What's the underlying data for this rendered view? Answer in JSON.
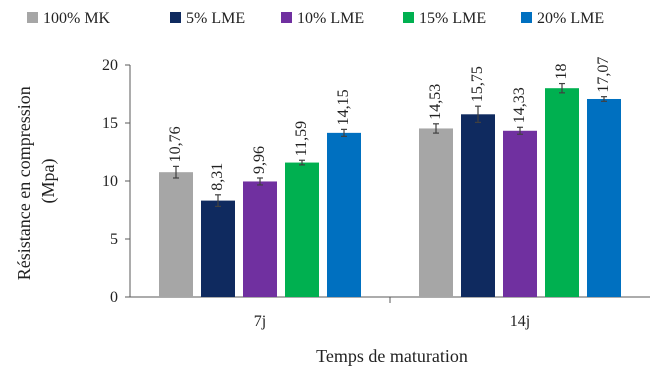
{
  "chart_data": {
    "type": "bar",
    "title": "",
    "xlabel": "Temps de maturation",
    "ylabel": "Résistance en compression (Mpa)",
    "ylabel_lines": [
      "Résistance en compression",
      "(Mpa)"
    ],
    "ylim": [
      0,
      20
    ],
    "yticks": [
      "0",
      "5",
      "10",
      "15",
      "20"
    ],
    "categories": [
      "7j",
      "14j"
    ],
    "legend_position": "top",
    "grid": false,
    "series": [
      {
        "name": "100% MK",
        "color": "#a6a6a6",
        "values": [
          10.76,
          14.53
        ],
        "labels": [
          "10,76",
          "14,53"
        ],
        "errors": [
          0.5,
          0.4
        ]
      },
      {
        "name": "5% LME",
        "color": "#0f2a5f",
        "values": [
          8.31,
          15.75
        ],
        "labels": [
          "8,31",
          "15,75"
        ],
        "errors": [
          0.5,
          0.7
        ]
      },
      {
        "name": "10% LME",
        "color": "#7030a0",
        "values": [
          9.96,
          14.33
        ],
        "labels": [
          "9,96",
          "14,33"
        ],
        "errors": [
          0.3,
          0.3
        ]
      },
      {
        "name": "15% LME",
        "color": "#00b050",
        "values": [
          11.59,
          18
        ],
        "labels": [
          "11,59",
          "18"
        ],
        "errors": [
          0.2,
          0.4
        ]
      },
      {
        "name": "20% LME",
        "color": "#0070c0",
        "values": [
          14.15,
          17.07
        ],
        "labels": [
          "14,15",
          "17,07"
        ],
        "errors": [
          0.3,
          0.2
        ]
      }
    ]
  }
}
